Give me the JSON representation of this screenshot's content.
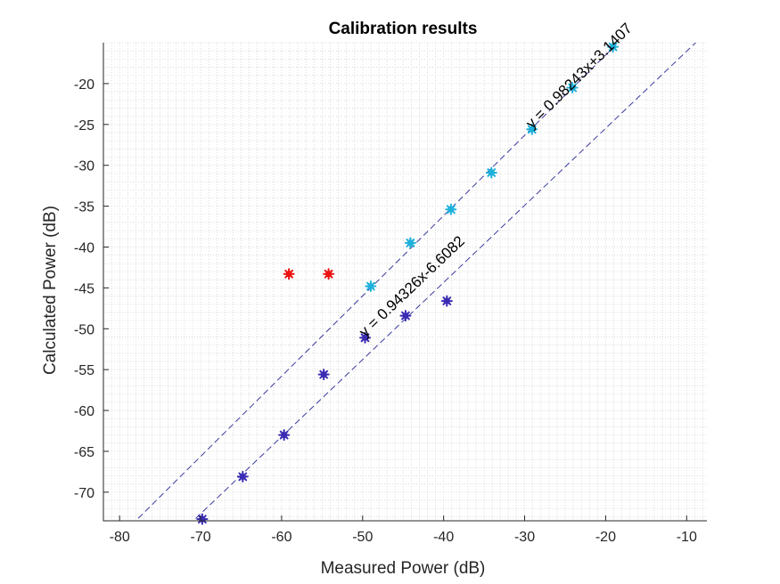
{
  "chart_data": {
    "type": "scatter",
    "title": "Calibration results",
    "xlabel": "Measured Power (dB)",
    "ylabel": "Calculated Power (dB)",
    "xlim": [
      -82,
      -7.5
    ],
    "ylim": [
      -73.5,
      -15
    ],
    "xticks": [
      -80,
      -70,
      -60,
      -50,
      -40,
      -30,
      -20,
      -10
    ],
    "yticks": [
      -70,
      -65,
      -60,
      -55,
      -50,
      -45,
      -40,
      -35,
      -30,
      -25,
      -20
    ],
    "grid": "minor-dotted",
    "series": [
      {
        "color": "#1fb1dc",
        "points": [
          [
            -49,
            -44.8
          ],
          [
            -44.1,
            -39.5
          ],
          [
            -39.1,
            -35.4
          ],
          [
            -34.1,
            -30.9
          ],
          [
            -29.1,
            -25.6
          ],
          [
            -24.1,
            -20.5
          ],
          [
            -19.1,
            -15.5
          ]
        ]
      },
      {
        "color": "#3b2cb3",
        "points": [
          [
            -69.8,
            -73.3
          ],
          [
            -64.8,
            -68.1
          ],
          [
            -59.7,
            -63.0
          ],
          [
            -54.8,
            -55.6
          ],
          [
            -49.7,
            -51.1
          ],
          [
            -44.7,
            -48.4
          ],
          [
            -39.6,
            -46.6
          ]
        ]
      },
      {
        "color": "#ee1111",
        "points": [
          [
            -59.1,
            -43.3
          ],
          [
            -54.2,
            -43.3
          ]
        ]
      }
    ],
    "fits": [
      {
        "slope": 0.98243,
        "intercept": 3.1407,
        "label": "y = 0.98243x+3.1407",
        "label_anchor": [
          -29.1,
          -25.6
        ]
      },
      {
        "slope": 0.94326,
        "intercept": -6.6082,
        "label": "y = 0.94326x-6.6082",
        "label_anchor": [
          -49.7,
          -51.1
        ]
      }
    ],
    "fit_color": "#3a3aa0"
  }
}
